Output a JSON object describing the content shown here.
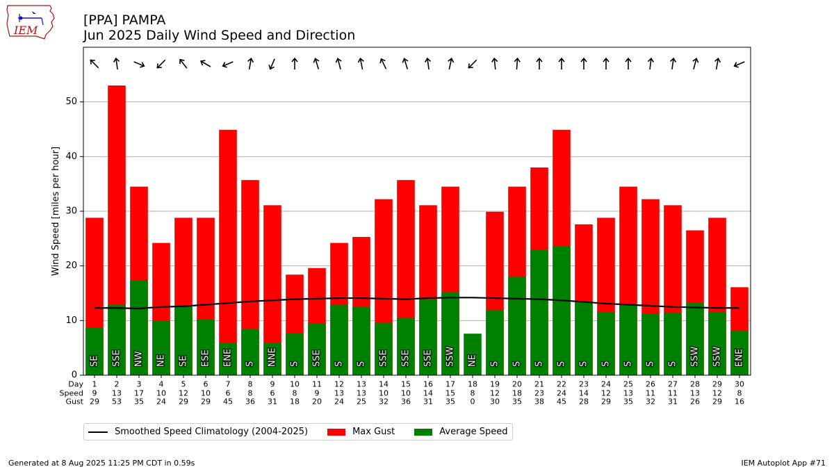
{
  "logo_text": "IEM",
  "title_line1": "[PPA] PAMPA",
  "title_line2": "Jun 2025 Daily Wind Speed and Direction",
  "footer_left": "Generated at 8 Aug 2025 11:25 PM CDT in 0.59s",
  "footer_right": "IEM Autoplot App #71",
  "legend": {
    "climatology": "Smoothed Speed Climatology (2004-2025)",
    "gust": "Max Gust",
    "speed": "Average Speed"
  },
  "colors": {
    "gust": "#ff0000",
    "speed": "#008000",
    "climatology": "#000000",
    "grid": "#b0b0b0"
  },
  "chart_data": {
    "type": "bar",
    "ylabel": "Wind Speed [miles per hour]",
    "ylim": [
      0,
      60
    ],
    "yticks": [
      0,
      10,
      20,
      30,
      40,
      50
    ],
    "grid": true,
    "legend_position": "bottom-left",
    "row_labels": [
      "Day",
      "Speed",
      "Gust"
    ],
    "days": [
      1,
      2,
      3,
      4,
      5,
      6,
      7,
      8,
      9,
      10,
      11,
      12,
      13,
      14,
      15,
      16,
      17,
      18,
      19,
      20,
      21,
      22,
      23,
      24,
      25,
      26,
      27,
      28,
      29,
      30
    ],
    "speed_labels": [
      9,
      13,
      17,
      10,
      12,
      10,
      6,
      8,
      6,
      8,
      9,
      13,
      13,
      10,
      10,
      14,
      15,
      8,
      12,
      18,
      23,
      24,
      14,
      12,
      13,
      11,
      11,
      13,
      12,
      8
    ],
    "gust_labels": [
      29,
      53,
      35,
      24,
      29,
      29,
      45,
      36,
      31,
      18,
      20,
      24,
      25,
      32,
      36,
      31,
      35,
      0,
      30,
      35,
      38,
      45,
      28,
      29,
      35,
      32,
      31,
      26,
      29,
      16
    ],
    "series": [
      {
        "name": "Max Gust",
        "values": [
          28.8,
          53.0,
          34.5,
          24.2,
          28.8,
          28.8,
          44.9,
          35.7,
          31.1,
          18.4,
          19.6,
          24.2,
          25.3,
          32.2,
          35.7,
          31.1,
          34.5,
          0,
          29.9,
          34.5,
          38.0,
          44.9,
          27.6,
          28.8,
          34.5,
          32.2,
          31.1,
          26.5,
          28.8,
          16.1
        ]
      },
      {
        "name": "Average Speed",
        "values": [
          8.7,
          12.9,
          17.4,
          9.9,
          12.5,
          10.2,
          5.9,
          8.4,
          5.9,
          7.7,
          9.5,
          12.9,
          12.5,
          9.6,
          10.5,
          13.9,
          15.2,
          7.6,
          11.9,
          18.0,
          22.9,
          23.6,
          13.5,
          11.6,
          13.0,
          11.3,
          11.4,
          13.2,
          11.6,
          8.1
        ]
      },
      {
        "name": "Smoothed Speed Climatology (2004-2025)",
        "values": [
          12.3,
          12.3,
          12.2,
          12.5,
          12.6,
          12.9,
          13.2,
          13.5,
          13.7,
          13.9,
          14.0,
          14.1,
          14.1,
          14.0,
          13.9,
          14.1,
          14.2,
          14.2,
          14.1,
          14.0,
          13.9,
          13.7,
          13.4,
          13.1,
          12.9,
          12.7,
          12.5,
          12.4,
          12.3,
          12.3
        ]
      }
    ],
    "directions": [
      "SE",
      "SSE",
      "NW",
      "NE",
      "SE",
      "ESE",
      "ENE",
      "S",
      "NNE",
      "S",
      "SSE",
      "S",
      "S",
      "SSE",
      "SSE",
      "SSE",
      "SSW",
      "NE",
      "S",
      "S",
      "S",
      "S",
      "S",
      "S",
      "S",
      "S",
      "S",
      "SSW",
      "SSW",
      "ENE"
    ],
    "arrow_angles_deg": [
      315,
      352,
      113,
      225,
      322,
      300,
      247,
      10,
      203,
      0,
      343,
      345,
      349,
      334,
      343,
      352,
      12,
      225,
      354,
      4,
      0,
      0,
      0,
      0,
      0,
      7,
      8,
      15,
      10,
      247
    ]
  }
}
